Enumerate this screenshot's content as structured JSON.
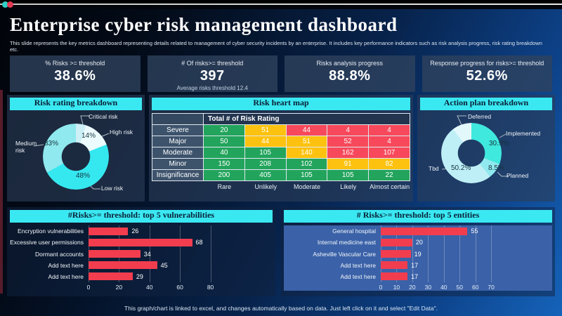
{
  "header": {
    "title": "Enterprise cyber risk management dashboard",
    "subtitle": "This slide represents the key metrics dashboard representing details related to management  of cyber security incidents by an enterprise. It includes key performance indicators such as risk analysis progress, risk rating breakdown etc."
  },
  "kpis": [
    {
      "label": "% Risks >= threshold",
      "value": "38.6%",
      "sub": ""
    },
    {
      "label": "# Of risks>= threshold",
      "value": "397",
      "sub": "Average risks threshold 12.4"
    },
    {
      "label": "Risks analysis progress",
      "value": "88.8%",
      "sub": ""
    },
    {
      "label": "Response progress for risks>= threshold",
      "value": "52.6%",
      "sub": ""
    }
  ],
  "footer": "This graph/chart is linked to excel, and changes automatically based on data. Just left click on it and select \"Edit Data\".",
  "chart_data": [
    {
      "id": "risk_rating_breakdown",
      "type": "pie",
      "donut": true,
      "title": "Risk rating breakdown",
      "legend_position": "callouts",
      "slices": [
        {
          "label": "Critical risk",
          "value": 5,
          "pct": "",
          "color": "#cdeff6"
        },
        {
          "label": "High risk",
          "value": 14,
          "pct": "14%",
          "color": "#ecfbfd"
        },
        {
          "label": "Low risk",
          "value": 48,
          "pct": "48%",
          "color": "#35e8f0"
        },
        {
          "label": "Medium risk",
          "value": 33,
          "pct": "33%",
          "color": "#8fe9ee"
        }
      ]
    },
    {
      "id": "risk_heat_map",
      "type": "heatmap",
      "title": "Risk heart map",
      "corner_header": "Total # of Risk Rating",
      "row_labels": [
        "Severe",
        "Major",
        "Moderate",
        "Minor",
        "Insignificance"
      ],
      "col_labels": [
        "Rare",
        "Unlikely",
        "Moderate",
        "Likely",
        "Almost certain"
      ],
      "values": [
        [
          20,
          51,
          44,
          4,
          4
        ],
        [
          50,
          44,
          51,
          52,
          4
        ],
        [
          40,
          105,
          140,
          162,
          107
        ],
        [
          150,
          208,
          102,
          91,
          82
        ],
        [
          200,
          405,
          105,
          105,
          22
        ]
      ],
      "cell_colors": [
        [
          "g",
          "y",
          "r",
          "r",
          "r"
        ],
        [
          "g",
          "y",
          "y",
          "r",
          "r"
        ],
        [
          "g",
          "g",
          "y",
          "r",
          "r"
        ],
        [
          "g",
          "g",
          "g",
          "y",
          "y"
        ],
        [
          "g",
          "g",
          "g",
          "g",
          "g"
        ]
      ],
      "palette": {
        "g": "#22a45c",
        "y": "#fdc20f",
        "r": "#f7495b"
      }
    },
    {
      "id": "action_plan_breakdown",
      "type": "pie",
      "donut": true,
      "title": "Action plan breakdown",
      "legend_position": "callouts",
      "slices": [
        {
          "label": "Implemented",
          "value": 30.9,
          "pct": "30.9%",
          "color": "#3fe9dd"
        },
        {
          "label": "Planned",
          "value": 8.5,
          "pct": "8.5%",
          "color": "#90e9ee"
        },
        {
          "label": "Tbd",
          "value": 50.2,
          "pct": "50.2%",
          "color": "#bfeff6"
        },
        {
          "label": "Deferred",
          "value": 10.4,
          "pct": "",
          "color": "#e3f8fb"
        }
      ]
    },
    {
      "id": "top5_vulnerabilities",
      "type": "bar",
      "orientation": "horizontal",
      "title": "#Risks>= threshold: top 5 vulnerabilities",
      "categories": [
        "Encryption vulnerabilities",
        "Excessive user permissions",
        "Dormant accounts",
        "Add text here",
        "Add text here"
      ],
      "values": [
        26,
        68,
        34,
        45,
        29
      ],
      "bar_color": "#f23d4f",
      "xlim": [
        0,
        118
      ],
      "xticks": [
        0,
        20,
        40,
        60,
        80
      ],
      "grid": true
    },
    {
      "id": "top5_entities",
      "type": "bar",
      "orientation": "horizontal",
      "title": "# Risks>= threshold: top 5 entities",
      "categories": [
        "General hospital",
        "Internal medicine east",
        "Asheville Vascular Care",
        "Add text here",
        "Add text here"
      ],
      "values": [
        55,
        20,
        19,
        17,
        17
      ],
      "bar_color": "#f23d4f",
      "xlim": [
        0,
        106
      ],
      "xticks": [
        0,
        10,
        20,
        30,
        40,
        50,
        60,
        70
      ],
      "grid": true
    }
  ]
}
